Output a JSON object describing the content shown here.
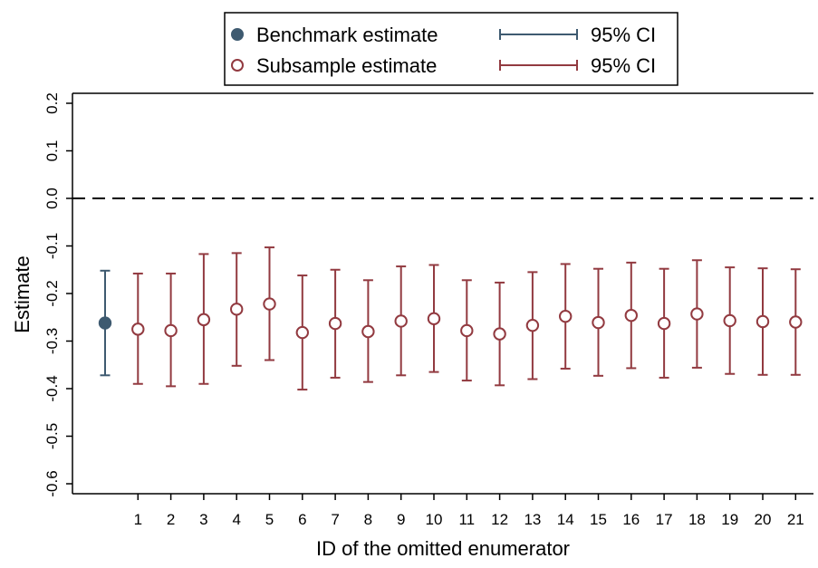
{
  "chart_data": {
    "type": "scatter",
    "title": "",
    "xlabel": "ID of the omitted enumerator",
    "ylabel": "Estimate",
    "ylim": [
      -0.62,
      0.22
    ],
    "y_ticks": [
      0.2,
      0.1,
      0.0,
      -0.1,
      -0.2,
      -0.3,
      -0.4,
      -0.5,
      -0.6
    ],
    "y_tick_labels": [
      "0.2",
      "0.1",
      "0.0",
      "-0.1",
      "-0.2",
      "-0.3",
      "-0.4",
      "-0.5",
      "-0.6"
    ],
    "x_tick_labels": [
      "1",
      "2",
      "3",
      "4",
      "5",
      "6",
      "7",
      "8",
      "9",
      "10",
      "11",
      "12",
      "13",
      "14",
      "15",
      "16",
      "17",
      "18",
      "19",
      "20",
      "21"
    ],
    "reference_line": {
      "y": 0.0,
      "style": "dashed"
    },
    "legend": {
      "placement": "top-center",
      "entries": [
        {
          "marker_label": "Benchmark estimate",
          "ci_label": "95% CI",
          "color": "#3e5a70",
          "marker": "filled-circle"
        },
        {
          "marker_label": "Subsample estimate",
          "ci_label": "95% CI",
          "color": "#923a40",
          "marker": "hollow-circle"
        }
      ]
    },
    "series": [
      {
        "name": "Benchmark estimate",
        "color": "#3e5a70",
        "points": [
          {
            "x": "",
            "y": -0.262,
            "ci_low": -0.372,
            "ci_high": -0.152
          }
        ]
      },
      {
        "name": "Subsample estimate",
        "color": "#923a40",
        "points": [
          {
            "x": "1",
            "y": -0.275,
            "ci_low": -0.39,
            "ci_high": -0.158
          },
          {
            "x": "2",
            "y": -0.278,
            "ci_low": -0.395,
            "ci_high": -0.158
          },
          {
            "x": "3",
            "y": -0.255,
            "ci_low": -0.39,
            "ci_high": -0.117
          },
          {
            "x": "4",
            "y": -0.233,
            "ci_low": -0.352,
            "ci_high": -0.115
          },
          {
            "x": "5",
            "y": -0.222,
            "ci_low": -0.34,
            "ci_high": -0.103
          },
          {
            "x": "6",
            "y": -0.282,
            "ci_low": -0.402,
            "ci_high": -0.162
          },
          {
            "x": "7",
            "y": -0.263,
            "ci_low": -0.377,
            "ci_high": -0.15
          },
          {
            "x": "8",
            "y": -0.28,
            "ci_low": -0.386,
            "ci_high": -0.172
          },
          {
            "x": "9",
            "y": -0.258,
            "ci_low": -0.372,
            "ci_high": -0.143
          },
          {
            "x": "10",
            "y": -0.253,
            "ci_low": -0.365,
            "ci_high": -0.14
          },
          {
            "x": "11",
            "y": -0.278,
            "ci_low": -0.383,
            "ci_high": -0.172
          },
          {
            "x": "12",
            "y": -0.285,
            "ci_low": -0.393,
            "ci_high": -0.177
          },
          {
            "x": "13",
            "y": -0.267,
            "ci_low": -0.38,
            "ci_high": -0.155
          },
          {
            "x": "14",
            "y": -0.248,
            "ci_low": -0.358,
            "ci_high": -0.138
          },
          {
            "x": "15",
            "y": -0.261,
            "ci_low": -0.373,
            "ci_high": -0.148
          },
          {
            "x": "16",
            "y": -0.246,
            "ci_low": -0.357,
            "ci_high": -0.135
          },
          {
            "x": "17",
            "y": -0.263,
            "ci_low": -0.377,
            "ci_high": -0.148
          },
          {
            "x": "18",
            "y": -0.243,
            "ci_low": -0.356,
            "ci_high": -0.13
          },
          {
            "x": "19",
            "y": -0.257,
            "ci_low": -0.369,
            "ci_high": -0.145
          },
          {
            "x": "20",
            "y": -0.259,
            "ci_low": -0.371,
            "ci_high": -0.147
          },
          {
            "x": "21",
            "y": -0.26,
            "ci_low": -0.371,
            "ci_high": -0.149
          }
        ]
      }
    ]
  }
}
